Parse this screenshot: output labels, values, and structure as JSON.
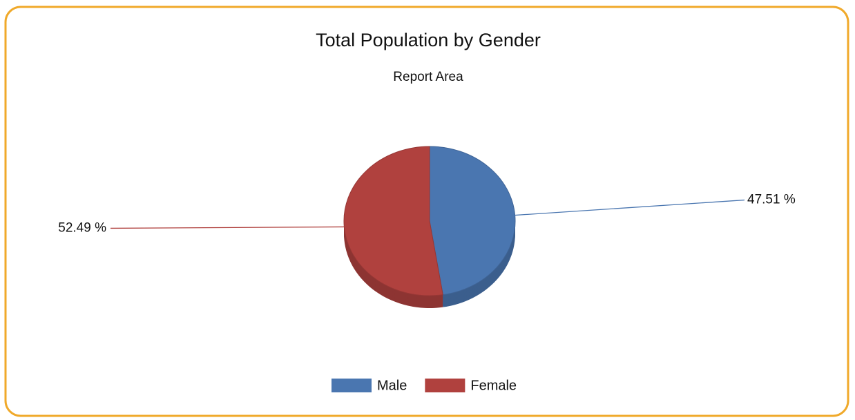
{
  "chart_data": {
    "type": "pie",
    "title": "Total Population by Gender",
    "subtitle": "Report Area",
    "categories": [
      "Male",
      "Female"
    ],
    "values": [
      47.51,
      52.49
    ],
    "value_labels": [
      "47.51 %",
      "52.49 %"
    ],
    "colors": [
      "#4a76b0",
      "#b0413e"
    ],
    "legend": "bottom"
  }
}
